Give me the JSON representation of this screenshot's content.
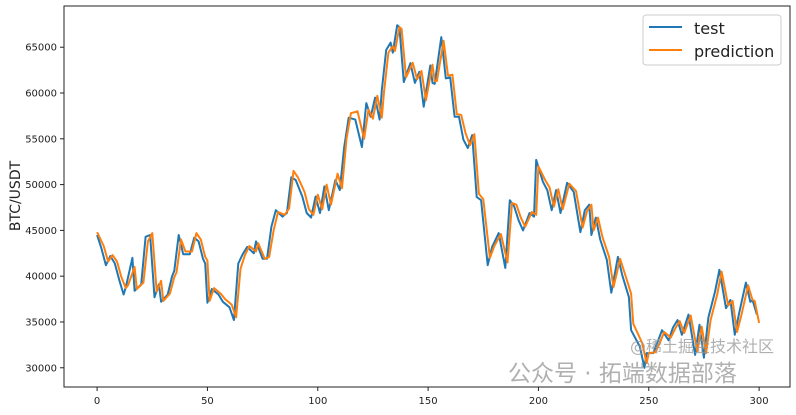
{
  "chart_data": {
    "type": "line",
    "title": "",
    "xlabel": "",
    "ylabel": "BTC/USDT",
    "xlim": [
      -15,
      314
    ],
    "ylim": [
      27900,
      69500
    ],
    "xticks": [
      0,
      50,
      100,
      150,
      200,
      250,
      300
    ],
    "yticks": [
      30000,
      35000,
      40000,
      45000,
      50000,
      55000,
      60000,
      65000
    ],
    "grid": false,
    "legend_position": "top-right",
    "series": [
      {
        "name": "test",
        "color": "#1f77b4",
        "x": [
          0,
          2,
          4,
          6,
          8,
          10,
          12,
          13,
          16,
          17,
          20,
          22,
          24,
          26,
          28,
          29,
          32,
          34,
          35,
          37,
          39,
          42,
          44,
          46,
          48,
          49,
          50,
          52,
          55,
          57,
          60,
          62,
          64,
          66,
          68,
          71,
          72,
          75,
          77,
          79,
          81,
          84,
          86,
          88,
          90,
          93,
          95,
          97,
          99,
          101,
          103,
          105,
          108,
          110,
          112,
          114,
          117,
          120,
          122,
          124,
          126,
          128,
          129,
          131,
          133,
          134,
          136,
          137,
          139,
          142,
          144,
          146,
          148,
          151,
          152,
          153,
          156,
          158,
          160,
          162,
          164,
          166,
          168,
          170,
          172,
          174,
          177,
          179,
          182,
          185,
          187,
          189,
          191,
          193,
          196,
          198,
          199,
          202,
          204,
          206,
          208,
          210,
          213,
          216,
          219,
          221,
          223,
          224,
          226,
          228,
          231,
          233,
          236,
          238,
          241,
          242,
          246,
          248,
          249,
          252,
          254,
          256,
          259,
          261,
          263,
          265,
          268,
          271,
          273,
          275,
          277,
          280,
          282,
          285,
          287,
          289,
          291,
          294,
          296,
          297,
          299
        ],
        "y": [
          44500,
          43000,
          41200,
          42200,
          41400,
          39600,
          38000,
          38800,
          42000,
          38400,
          39100,
          44300,
          44500,
          37700,
          39100,
          37200,
          38000,
          40000,
          40600,
          44500,
          42400,
          42400,
          44200,
          43800,
          41900,
          41400,
          37100,
          38600,
          38000,
          37200,
          36600,
          35200,
          41400,
          42400,
          43200,
          42500,
          43800,
          41900,
          41900,
          45400,
          47200,
          46500,
          46900,
          50800,
          50500,
          48700,
          46900,
          46400,
          48700,
          46900,
          49800,
          47200,
          50500,
          49400,
          54100,
          57300,
          57100,
          54100,
          58900,
          57400,
          59500,
          57100,
          60300,
          64700,
          65500,
          64400,
          67400,
          67200,
          61200,
          63250,
          61100,
          62300,
          58500,
          63000,
          61100,
          61000,
          66100,
          61600,
          61700,
          57400,
          57400,
          54900,
          54000,
          55400,
          48650,
          48300,
          41200,
          43200,
          44700,
          40900,
          48300,
          47600,
          46100,
          45000,
          46900,
          46500,
          52700,
          50300,
          49400,
          47200,
          49400,
          46900,
          50200,
          49200,
          44800,
          47200,
          47800,
          44500,
          46400,
          44000,
          41800,
          38200,
          42100,
          40100,
          37700,
          34100,
          32300,
          30000,
          31600,
          31600,
          32800,
          34100,
          33000,
          34400,
          35200,
          33600,
          35800,
          31400,
          34700,
          31100,
          35500,
          38300,
          40700,
          36500,
          37400,
          33600,
          36000,
          39300,
          37200,
          37400,
          35800
        ]
      },
      {
        "name": "prediction",
        "color": "#ff7f0e",
        "x": [
          0,
          3,
          5,
          7,
          9,
          11,
          13,
          14,
          17,
          18,
          21,
          23,
          25,
          27,
          29,
          30,
          33,
          35,
          36,
          38,
          40,
          43,
          45,
          47,
          49,
          50,
          51,
          53,
          56,
          58,
          61,
          63,
          65,
          67,
          69,
          72,
          73,
          76,
          78,
          80,
          82,
          85,
          87,
          89,
          91,
          94,
          96,
          98,
          100,
          102,
          104,
          106,
          109,
          111,
          113,
          115,
          118,
          121,
          123,
          125,
          127,
          129,
          130,
          132,
          134,
          135,
          137,
          138,
          140,
          143,
          145,
          147,
          149,
          152,
          153,
          154,
          157,
          159,
          161,
          163,
          165,
          167,
          169,
          171,
          173,
          175,
          178,
          180,
          183,
          186,
          188,
          190,
          192,
          194,
          197,
          199,
          200,
          203,
          205,
          207,
          209,
          211,
          214,
          217,
          220,
          222,
          224,
          225,
          227,
          229,
          232,
          234,
          237,
          239,
          242,
          243,
          247,
          249,
          250,
          253,
          255,
          257,
          260,
          262,
          264,
          266,
          269,
          272,
          274,
          276,
          278,
          281,
          283,
          286,
          288,
          290,
          292,
          295,
          297,
          298,
          300
        ],
        "y": [
          44800,
          43300,
          41600,
          42300,
          41600,
          39900,
          38700,
          39000,
          41000,
          38600,
          39300,
          43800,
          44700,
          38300,
          39500,
          37300,
          38100,
          39900,
          40400,
          44000,
          42700,
          42700,
          44700,
          44000,
          42100,
          41700,
          37300,
          38700,
          38100,
          37500,
          36900,
          35500,
          40800,
          42300,
          43300,
          42700,
          43600,
          41900,
          42100,
          45000,
          47000,
          46700,
          47400,
          51500,
          50800,
          49200,
          47300,
          46700,
          48900,
          47300,
          50000,
          47800,
          51200,
          49600,
          55000,
          57800,
          58000,
          55000,
          58200,
          57200,
          59700,
          57300,
          60100,
          64400,
          65100,
          64600,
          67200,
          67000,
          61700,
          63300,
          61500,
          62400,
          59200,
          63100,
          61300,
          61300,
          65700,
          61900,
          62000,
          57700,
          57600,
          55600,
          54300,
          55500,
          49000,
          48400,
          42000,
          43300,
          44600,
          41500,
          48000,
          47800,
          46400,
          45400,
          47000,
          46700,
          52000,
          50500,
          49700,
          47600,
          49500,
          47300,
          50100,
          49300,
          45300,
          47100,
          47800,
          45000,
          46400,
          44300,
          42100,
          38800,
          41900,
          40400,
          38100,
          34800,
          32700,
          30500,
          31600,
          31700,
          32700,
          33900,
          33300,
          34300,
          35100,
          33800,
          35700,
          31800,
          34500,
          31600,
          35200,
          38000,
          40500,
          36800,
          37300,
          33900,
          35800,
          39000,
          37400,
          37300,
          34900
        ]
      }
    ]
  },
  "watermark": {
    "line1": "公众号 · 拓端数据部落",
    "line2": "@稀土掘金技术社区"
  }
}
